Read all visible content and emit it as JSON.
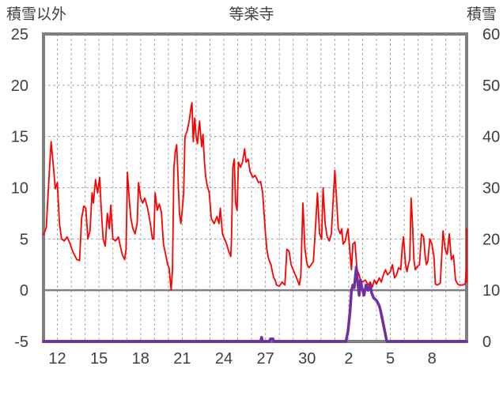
{
  "chart_data": {
    "type": "line",
    "title": "等楽寺",
    "y_left_label": "積雪以外",
    "y_right_label": "積雪",
    "y_left_ticks": [
      "25",
      "20",
      "15",
      "10",
      "5",
      "0",
      "-5"
    ],
    "y_right_ticks": [
      "60",
      "50",
      "40",
      "30",
      "20",
      "10",
      "0"
    ],
    "x_tick_labels": [
      "12",
      "15",
      "18",
      "21",
      "24",
      "27",
      "30",
      "2",
      "5",
      "8"
    ],
    "y_left_range": [
      -5,
      25
    ],
    "y_right_range": [
      0,
      60
    ],
    "x_range": [
      0,
      30.5
    ],
    "grid": true,
    "series": [
      {
        "axis": "left",
        "color": "#ff0000",
        "points": [
          [
            0,
            5.4
          ],
          [
            0.2,
            6.1
          ],
          [
            0.35,
            9.8
          ],
          [
            0.55,
            14.5
          ],
          [
            0.75,
            11.5
          ],
          [
            0.85,
            9.9
          ],
          [
            1.0,
            10.5
          ],
          [
            1.15,
            6.5
          ],
          [
            1.3,
            5.0
          ],
          [
            1.5,
            4.8
          ],
          [
            1.7,
            5.2
          ],
          [
            1.9,
            4.6
          ],
          [
            2.1,
            3.8
          ],
          [
            2.4,
            3.0
          ],
          [
            2.6,
            2.9
          ],
          [
            2.75,
            7.0
          ],
          [
            2.9,
            8.2
          ],
          [
            3.05,
            8.0
          ],
          [
            3.2,
            5.0
          ],
          [
            3.35,
            5.8
          ],
          [
            3.5,
            9.5
          ],
          [
            3.6,
            8.5
          ],
          [
            3.75,
            10.8
          ],
          [
            3.9,
            9.5
          ],
          [
            4.05,
            11.0
          ],
          [
            4.15,
            8.2
          ],
          [
            4.3,
            5.0
          ],
          [
            4.45,
            4.3
          ],
          [
            4.6,
            7.5
          ],
          [
            4.75,
            6.0
          ],
          [
            4.85,
            8.3
          ],
          [
            5.0,
            5.0
          ],
          [
            5.2,
            4.8
          ],
          [
            5.4,
            5.2
          ],
          [
            5.55,
            4.2
          ],
          [
            5.7,
            3.4
          ],
          [
            5.85,
            3.0
          ],
          [
            5.95,
            4.0
          ],
          [
            6.05,
            11.5
          ],
          [
            6.2,
            8.5
          ],
          [
            6.3,
            7.0
          ],
          [
            6.45,
            6.0
          ],
          [
            6.6,
            5.5
          ],
          [
            6.75,
            6.5
          ],
          [
            6.85,
            10.5
          ],
          [
            7.0,
            9.0
          ],
          [
            7.15,
            8.5
          ],
          [
            7.3,
            9.0
          ],
          [
            7.5,
            8.0
          ],
          [
            7.7,
            6.5
          ],
          [
            7.85,
            5.0
          ],
          [
            7.95,
            5.0
          ],
          [
            8.05,
            9.5
          ],
          [
            8.2,
            7.8
          ],
          [
            8.35,
            8.4
          ],
          [
            8.5,
            7.6
          ],
          [
            8.65,
            4.5
          ],
          [
            8.8,
            3.5
          ],
          [
            8.95,
            2.5
          ],
          [
            9.05,
            2.2
          ],
          [
            9.2,
            0.0
          ],
          [
            9.3,
            2.0
          ],
          [
            9.4,
            12.0
          ],
          [
            9.5,
            13.5
          ],
          [
            9.6,
            14.2
          ],
          [
            9.7,
            11.0
          ],
          [
            9.8,
            7.5
          ],
          [
            9.9,
            6.5
          ],
          [
            10.0,
            7.8
          ],
          [
            10.1,
            9.5
          ],
          [
            10.2,
            15.0
          ],
          [
            10.35,
            15.5
          ],
          [
            10.5,
            16.5
          ],
          [
            10.6,
            17.5
          ],
          [
            10.7,
            18.3
          ],
          [
            10.8,
            14.5
          ],
          [
            10.9,
            16.8
          ],
          [
            11.0,
            15.0
          ],
          [
            11.1,
            14.3
          ],
          [
            11.25,
            16.5
          ],
          [
            11.4,
            14.0
          ],
          [
            11.5,
            15.2
          ],
          [
            11.6,
            12.5
          ],
          [
            11.7,
            11.0
          ],
          [
            11.8,
            10.2
          ],
          [
            11.95,
            9.5
          ],
          [
            12.1,
            7.0
          ],
          [
            12.3,
            6.5
          ],
          [
            12.5,
            7.2
          ],
          [
            12.65,
            6.5
          ],
          [
            12.75,
            8.0
          ],
          [
            12.9,
            5.5
          ],
          [
            13.05,
            5.0
          ],
          [
            13.2,
            4.5
          ],
          [
            13.35,
            3.8
          ],
          [
            13.5,
            3.3
          ],
          [
            13.55,
            5.0
          ],
          [
            13.65,
            12.0
          ],
          [
            13.75,
            12.8
          ],
          [
            13.85,
            8.5
          ],
          [
            13.95,
            7.8
          ],
          [
            14.05,
            12.5
          ],
          [
            14.2,
            12.0
          ],
          [
            14.35,
            12.5
          ],
          [
            14.5,
            13.8
          ],
          [
            14.6,
            12.5
          ],
          [
            14.75,
            12.8
          ],
          [
            14.9,
            11.5
          ],
          [
            15.1,
            11.0
          ],
          [
            15.25,
            11.2
          ],
          [
            15.4,
            10.8
          ],
          [
            15.5,
            10.5
          ],
          [
            15.65,
            10.6
          ],
          [
            15.8,
            9.5
          ],
          [
            15.9,
            7.5
          ],
          [
            16.0,
            5.5
          ],
          [
            16.1,
            4.0
          ],
          [
            16.2,
            3.2
          ],
          [
            16.3,
            2.8
          ],
          [
            16.4,
            2.5
          ],
          [
            16.5,
            1.8
          ],
          [
            16.6,
            1.2
          ],
          [
            16.7,
            1.0
          ],
          [
            16.8,
            0.5
          ],
          [
            17.0,
            0.4
          ],
          [
            17.2,
            0.8
          ],
          [
            17.4,
            0.5
          ],
          [
            17.55,
            4.0
          ],
          [
            17.7,
            3.8
          ],
          [
            17.85,
            2.5
          ],
          [
            18.0,
            2.0
          ],
          [
            18.15,
            1.5
          ],
          [
            18.3,
            1.0
          ],
          [
            18.45,
            0.5
          ],
          [
            18.55,
            1.5
          ],
          [
            18.7,
            8.5
          ],
          [
            18.85,
            4.0
          ],
          [
            19.0,
            2.5
          ],
          [
            19.15,
            2.2
          ],
          [
            19.3,
            2.5
          ],
          [
            19.45,
            2.8
          ],
          [
            19.6,
            6.0
          ],
          [
            19.75,
            9.5
          ],
          [
            19.9,
            5.5
          ],
          [
            20.05,
            5.0
          ],
          [
            20.15,
            10.0
          ],
          [
            20.3,
            6.5
          ],
          [
            20.45,
            5.2
          ],
          [
            20.6,
            4.8
          ],
          [
            20.75,
            5.5
          ],
          [
            20.85,
            8.0
          ],
          [
            21.0,
            11.7
          ],
          [
            21.1,
            9.5
          ],
          [
            21.25,
            6.0
          ],
          [
            21.4,
            5.5
          ],
          [
            21.5,
            6.0
          ],
          [
            21.6,
            4.5
          ],
          [
            21.75,
            4.8
          ],
          [
            21.85,
            5.5
          ],
          [
            21.95,
            6.0
          ],
          [
            22.1,
            3.5
          ],
          [
            22.2,
            2.0
          ],
          [
            22.3,
            4.5
          ],
          [
            22.45,
            4.7
          ],
          [
            22.6,
            2.0
          ],
          [
            22.75,
            1.5
          ],
          [
            22.85,
            1.0
          ],
          [
            23.0,
            0.8
          ],
          [
            23.2,
            1.0
          ],
          [
            23.4,
            0.5
          ],
          [
            23.55,
            0.8
          ],
          [
            23.7,
            0.3
          ],
          [
            23.85,
            1.0
          ],
          [
            24.0,
            0.6
          ],
          [
            24.2,
            1.2
          ],
          [
            24.35,
            0.8
          ],
          [
            24.5,
            1.5
          ],
          [
            24.65,
            2.0
          ],
          [
            24.8,
            1.5
          ],
          [
            25.0,
            1.8
          ],
          [
            25.15,
            2.5
          ],
          [
            25.3,
            1.2
          ],
          [
            25.45,
            1.5
          ],
          [
            25.6,
            2.2
          ],
          [
            25.75,
            2.0
          ],
          [
            25.85,
            4.0
          ],
          [
            25.95,
            5.2
          ],
          [
            26.1,
            2.5
          ],
          [
            26.2,
            1.8
          ],
          [
            26.3,
            2.5
          ],
          [
            26.4,
            3.0
          ],
          [
            26.5,
            9.0
          ],
          [
            26.6,
            6.5
          ],
          [
            26.7,
            3.0
          ],
          [
            26.8,
            2.0
          ],
          [
            26.95,
            2.3
          ],
          [
            27.1,
            2.5
          ],
          [
            27.25,
            5.5
          ],
          [
            27.4,
            5.2
          ],
          [
            27.5,
            3.5
          ],
          [
            27.6,
            2.5
          ],
          [
            27.7,
            2.8
          ],
          [
            27.85,
            5.0
          ],
          [
            28.0,
            4.5
          ],
          [
            28.15,
            3.2
          ],
          [
            28.25,
            0.6
          ],
          [
            28.4,
            0.5
          ],
          [
            28.6,
            0.7
          ],
          [
            28.8,
            5.8
          ],
          [
            28.95,
            4.0
          ],
          [
            29.1,
            3.5
          ],
          [
            29.25,
            5.5
          ],
          [
            29.4,
            3.0
          ],
          [
            29.55,
            3.4
          ],
          [
            29.7,
            1.0
          ],
          [
            29.85,
            0.6
          ],
          [
            30.0,
            0.5
          ],
          [
            30.2,
            0.5
          ],
          [
            30.4,
            0.6
          ],
          [
            30.5,
            2.2
          ],
          [
            30.6,
            1.8
          ],
          [
            30.65,
            4.2
          ],
          [
            30.75,
            5.5
          ],
          [
            30.85,
            6.0
          ],
          [
            30.95,
            3.5
          ],
          [
            31.0,
            1.5
          ],
          [
            31.1,
            0.8
          ]
        ]
      },
      {
        "axis": "right",
        "color": "#7030a0",
        "points": [
          [
            0,
            0
          ],
          [
            15.65,
            0
          ],
          [
            15.72,
            0.8
          ],
          [
            15.8,
            0
          ],
          [
            16.3,
            0
          ],
          [
            16.35,
            0.5
          ],
          [
            16.55,
            0.5
          ],
          [
            16.6,
            0
          ],
          [
            21.8,
            0
          ],
          [
            21.95,
            2
          ],
          [
            22.1,
            6
          ],
          [
            22.2,
            10
          ],
          [
            22.3,
            11
          ],
          [
            22.4,
            10.5
          ],
          [
            22.55,
            14.5
          ],
          [
            22.65,
            11.5
          ],
          [
            22.75,
            9
          ],
          [
            22.85,
            12
          ],
          [
            22.95,
            10.5
          ],
          [
            23.1,
            9
          ],
          [
            23.25,
            11
          ],
          [
            23.4,
            10
          ],
          [
            23.55,
            11
          ],
          [
            23.65,
            9.5
          ],
          [
            23.8,
            8.5
          ],
          [
            24.0,
            8
          ],
          [
            24.2,
            7
          ],
          [
            24.3,
            6
          ],
          [
            24.45,
            4
          ],
          [
            24.6,
            2
          ],
          [
            24.75,
            0
          ],
          [
            31.5,
            0
          ]
        ]
      }
    ]
  }
}
